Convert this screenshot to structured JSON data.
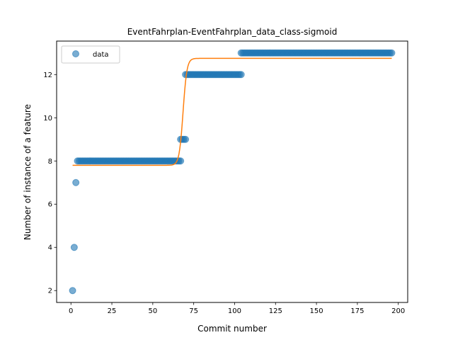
{
  "chart_data": {
    "type": "scatter",
    "title": "EventFahrplan-EventFahrplan_data_class-sigmoid",
    "xlabel": "Commit number",
    "ylabel": "Number of instance of a feature",
    "xlim": [
      -8.75,
      205.75
    ],
    "ylim": [
      1.45,
      13.55
    ],
    "xticks": [
      0,
      25,
      50,
      75,
      100,
      125,
      150,
      175,
      200
    ],
    "yticks": [
      2,
      4,
      6,
      8,
      10,
      12
    ],
    "grid": false,
    "legend": {
      "position": "top-left",
      "entries": [
        "data"
      ]
    },
    "series": [
      {
        "name": "data",
        "kind": "points",
        "color": "#1f77b4",
        "runs": [
          {
            "x_start": 1,
            "x_end": 1,
            "y": 2
          },
          {
            "x_start": 2,
            "x_end": 2,
            "y": 4
          },
          {
            "x_start": 3,
            "x_end": 3,
            "y": 7
          },
          {
            "x_start": 4,
            "x_end": 67,
            "y": 8
          },
          {
            "x_start": 67,
            "x_end": 70,
            "y": 9
          },
          {
            "x_start": 70,
            "x_end": 104,
            "y": 12
          },
          {
            "x_start": 104,
            "x_end": 196,
            "y": 13
          }
        ]
      },
      {
        "kind": "sigmoid-fit",
        "color": "#ff7f0e",
        "x_range": [
          1,
          196
        ],
        "lower": 7.8,
        "upper": 12.75,
        "midpoint": 68.5,
        "steepness": 0.85
      }
    ]
  }
}
